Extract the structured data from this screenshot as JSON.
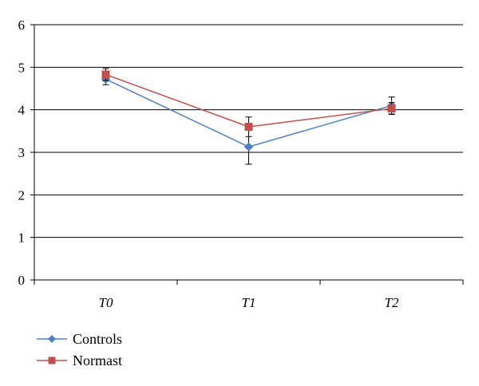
{
  "chart_data": {
    "type": "line",
    "title": "",
    "xlabel": "",
    "ylabel": "",
    "categories": [
      "T0",
      "T1",
      "T2"
    ],
    "ylim": [
      0,
      6
    ],
    "yticks": [
      "0",
      "1",
      "2",
      "3",
      "4",
      "5",
      "6"
    ],
    "grid": true,
    "legend_position": "bottom-left",
    "series": [
      {
        "name": "Controls",
        "color": "#4F81BD",
        "marker": "diamond",
        "values": [
          4.72,
          3.13,
          4.1
        ],
        "error": [
          0.13,
          0.41,
          0.2
        ]
      },
      {
        "name": "Normast",
        "color": "#C0504D",
        "marker": "square",
        "values": [
          4.83,
          3.6,
          4.03
        ],
        "error": [
          0.14,
          0.23,
          0.14
        ]
      }
    ]
  }
}
